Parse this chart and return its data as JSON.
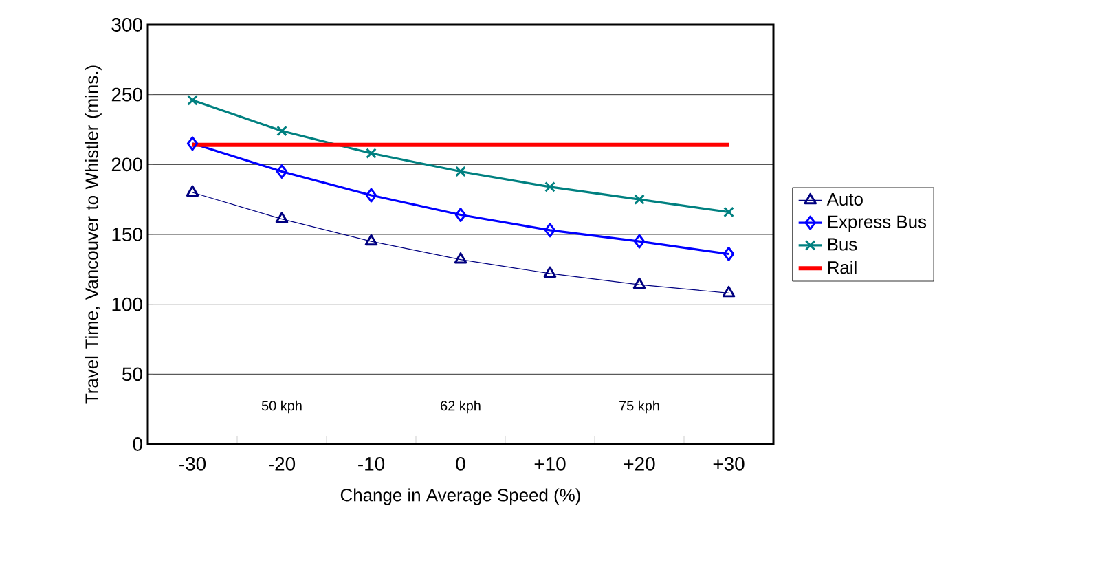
{
  "chart_data": {
    "type": "line",
    "xlabel": "Change in Average Speed (%)",
    "ylabel": "Travel Time, Vancouver to Whistler (mins.)",
    "categories": [
      "-30",
      "-20",
      "-10",
      "0",
      "+10",
      "+20",
      "+30"
    ],
    "series": [
      {
        "name": "Auto",
        "color": "#000080",
        "marker": "triangle",
        "values": [
          180,
          161,
          145,
          132,
          122,
          114,
          108
        ]
      },
      {
        "name": "Express Bus",
        "color": "#0000ff",
        "marker": "diamond",
        "values": [
          215,
          195,
          178,
          164,
          153,
          145,
          136
        ]
      },
      {
        "name": "Bus",
        "color": "#008080",
        "marker": "cross",
        "values": [
          246,
          224,
          208,
          195,
          184,
          175,
          166
        ]
      },
      {
        "name": "Rail",
        "color": "#ff0000",
        "marker": "none",
        "values": [
          214,
          214,
          214,
          214,
          214,
          214,
          214
        ]
      }
    ],
    "ylim": [
      0,
      300
    ],
    "yticks": [
      0,
      50,
      100,
      150,
      200,
      250,
      300
    ],
    "grid": "y",
    "legend": "right",
    "annotations": [
      "50 kph",
      "62 kph",
      "75 kph"
    ]
  }
}
